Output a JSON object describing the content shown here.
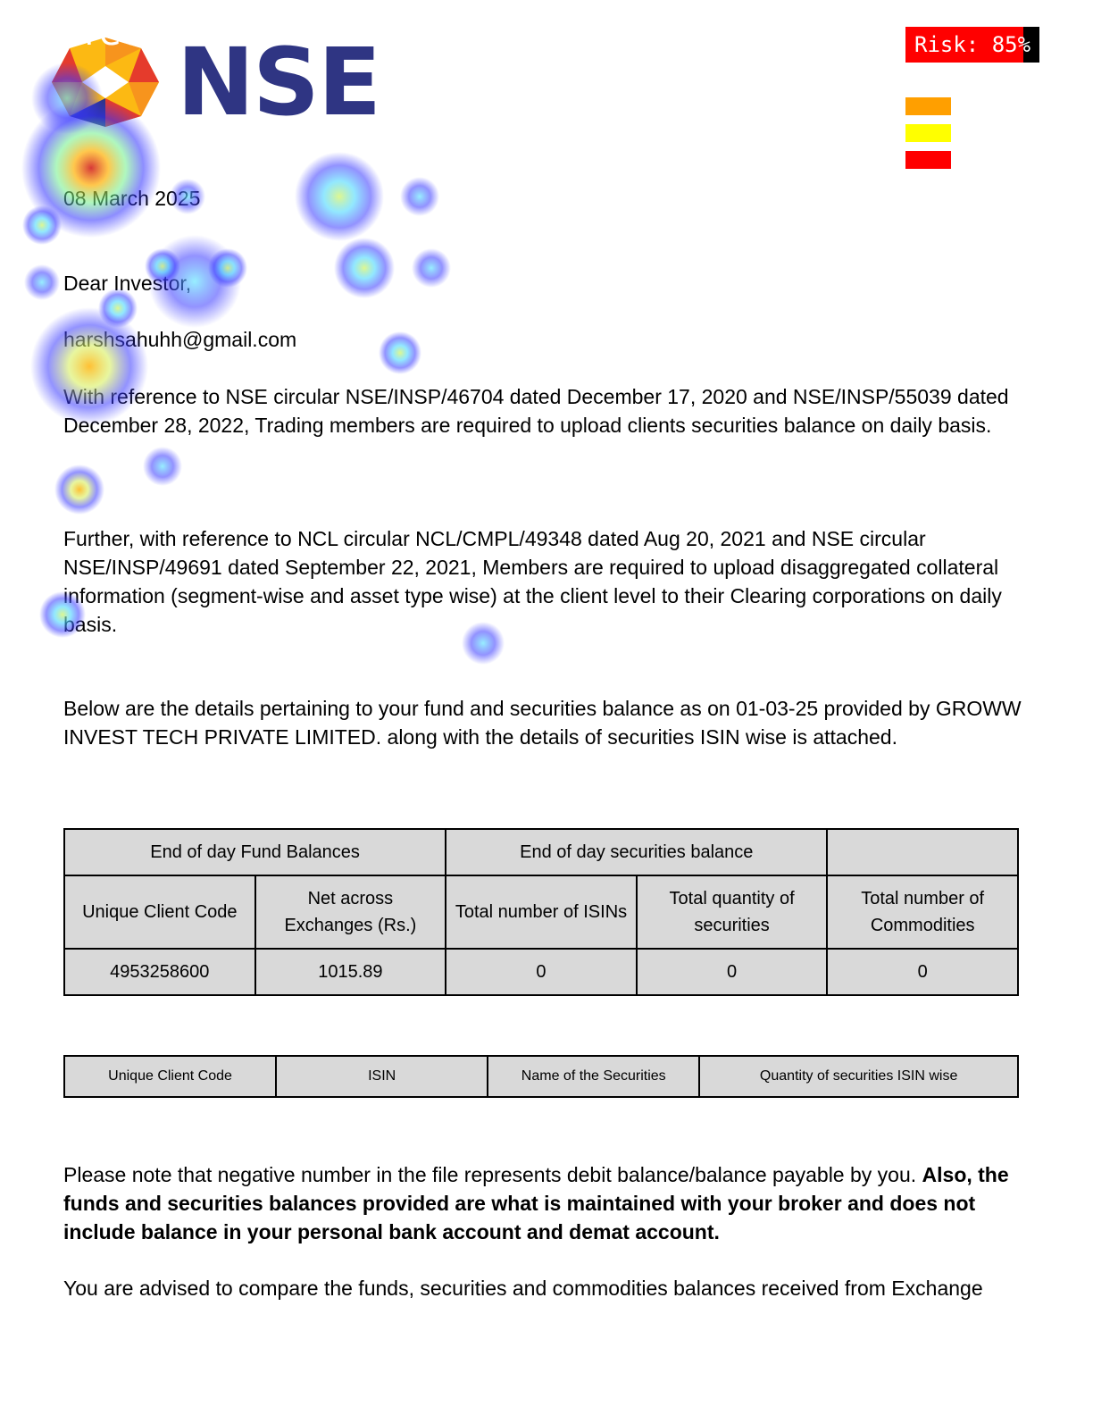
{
  "overlay": {
    "heatmap_title": "Prediction map",
    "risk_label": "Risk:",
    "risk_value": "85%",
    "legend_colors": [
      "#ff9f00",
      "#ffff00",
      "#ff0000"
    ]
  },
  "header": {
    "logo_text": "NSE",
    "logo_colors": [
      "#2f3583",
      "#e53b2c",
      "#f7941d",
      "#fcb913"
    ]
  },
  "letter": {
    "date": "08 March 2025",
    "salutation": "Dear Investor,",
    "email": "harshsahuhh@gmail.com",
    "para1": "With reference to NSE circular NSE/INSP/46704 dated December 17, 2020 and NSE/INSP/55039 dated December 28, 2022, Trading members are required to upload clients securities balance on daily basis.",
    "para2": "Further, with reference to NCL circular NCL/CMPL/49348 dated Aug 20, 2021 and NSE circular NSE/INSP/49691 dated September 22, 2021, Members are required to upload disaggregated collateral information (segment-wise and asset type wise) at the client level to their Clearing corporations on daily basis.",
    "para3": "Below are the details pertaining to your fund and securities balance as on 01-03-25 provided by GROWW INVEST TECH PRIVATE LIMITED. along with the details of securities ISIN wise is attached.",
    "note_normal": "Please note that negative number in the file represents debit balance/balance payable by you. ",
    "note_bold": "Also, the funds and securities balances provided are what is maintained with your broker and does not include balance in your personal bank account and demat account.",
    "advice": "You are advised to compare the funds, securities and commodities balances received from Exchange"
  },
  "summary_table": {
    "group_fund": "End of day  Fund Balances",
    "group_securities": "End of day securities balance",
    "group_blank": "",
    "col_client_code": "Unique Client Code",
    "col_net_line1": "Net across",
    "col_net_line2": "Exchanges (Rs.)",
    "col_isins": "Total number of ISINs",
    "col_qty_line1": "Total quantity of",
    "col_qty_line2": "securities",
    "col_comm_line1": "Total number of",
    "col_comm_line2": "Commodities",
    "row": {
      "client_code": "4953258600",
      "net": "1015.89",
      "isins": "0",
      "qty": "0",
      "commodities": "0"
    }
  },
  "isin_table": {
    "headers": [
      "Unique Client Code",
      "ISIN",
      "Name of the Securities",
      "Quantity of securities ISIN wise"
    ]
  }
}
